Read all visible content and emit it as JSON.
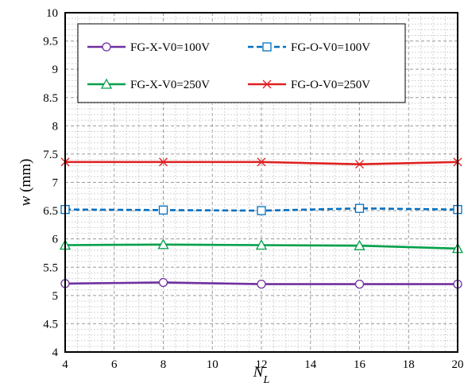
{
  "chart_data": {
    "type": "line",
    "xlabel": "N",
    "xlabel_sub": "L",
    "ylabel_var": "w",
    "ylabel_unit": " (mm)",
    "xlim": [
      4,
      20
    ],
    "ylim": [
      4,
      10
    ],
    "xticks": [
      4,
      6,
      8,
      10,
      12,
      14,
      16,
      18,
      20
    ],
    "yticks": [
      "4",
      "4.5",
      "5",
      "5.5",
      "6",
      "6.5",
      "7",
      "7.5",
      "8",
      "8.5",
      "9",
      "9.5",
      "10"
    ],
    "grid": true,
    "legend_position": "top",
    "x": [
      4,
      8,
      12,
      16,
      20
    ],
    "series": [
      {
        "name": "FG-X-V0=100V",
        "values": [
          5.21,
          5.23,
          5.2,
          5.2,
          5.2
        ],
        "color": "#7030A0",
        "marker": "circle",
        "dash": "solid"
      },
      {
        "name": "FG-O-V0=100V",
        "values": [
          6.52,
          6.51,
          6.5,
          6.54,
          6.52
        ],
        "color": "#0070C0",
        "marker": "square",
        "dash": "dashed"
      },
      {
        "name": "FG-X-V0=250V",
        "values": [
          5.89,
          5.9,
          5.89,
          5.88,
          5.83
        ],
        "color": "#00A04A",
        "marker": "triangle",
        "dash": "solid"
      },
      {
        "name": "FG-O-V0=250V",
        "values": [
          7.36,
          7.36,
          7.36,
          7.32,
          7.36
        ],
        "color": "#E02020",
        "marker": "x",
        "dash": "solid"
      }
    ]
  }
}
